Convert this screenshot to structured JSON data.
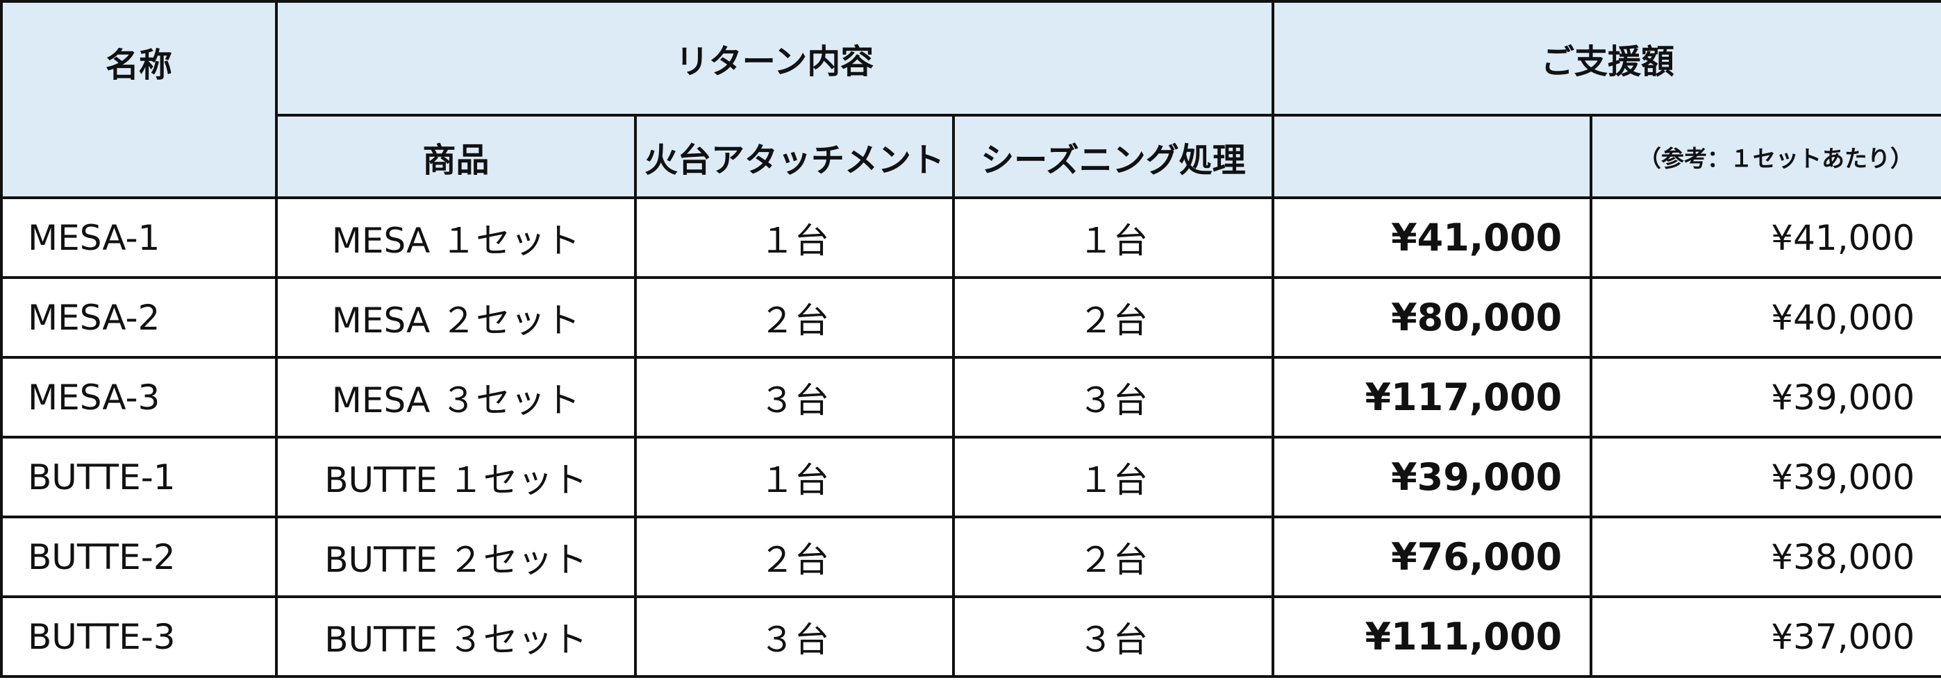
{
  "header": {
    "name": "名称",
    "return": "リターン内容",
    "support": "ご支援額",
    "columns": [
      "商品",
      "火台アタッチメント",
      "シーズニング処理",
      "（参考：１セットあたり）"
    ]
  },
  "table": {
    "rows": [
      [
        "MESA-1",
        "MESA １セット",
        "１台",
        "１台",
        "¥41,000",
        "¥41,000"
      ],
      [
        "MESA-2",
        "MESA ２セット",
        "２台",
        "２台",
        "¥80,000",
        "¥40,000"
      ],
      [
        "MESA-3",
        "MESA ３セット",
        "３台",
        "３台",
        "¥117,000",
        "¥39,000"
      ],
      [
        "BUTTE-1",
        "BUTTE １セット",
        "１台",
        "１台",
        "¥39,000",
        "¥39,000"
      ],
      [
        "BUTTE-2",
        "BUTTE ２セット",
        "２台",
        "２台",
        "¥76,000",
        "¥38,000"
      ],
      [
        "BUTTE-3",
        "BUTTE ３セット",
        "３台",
        "３台",
        "¥111,000",
        "¥37,000"
      ]
    ]
  }
}
